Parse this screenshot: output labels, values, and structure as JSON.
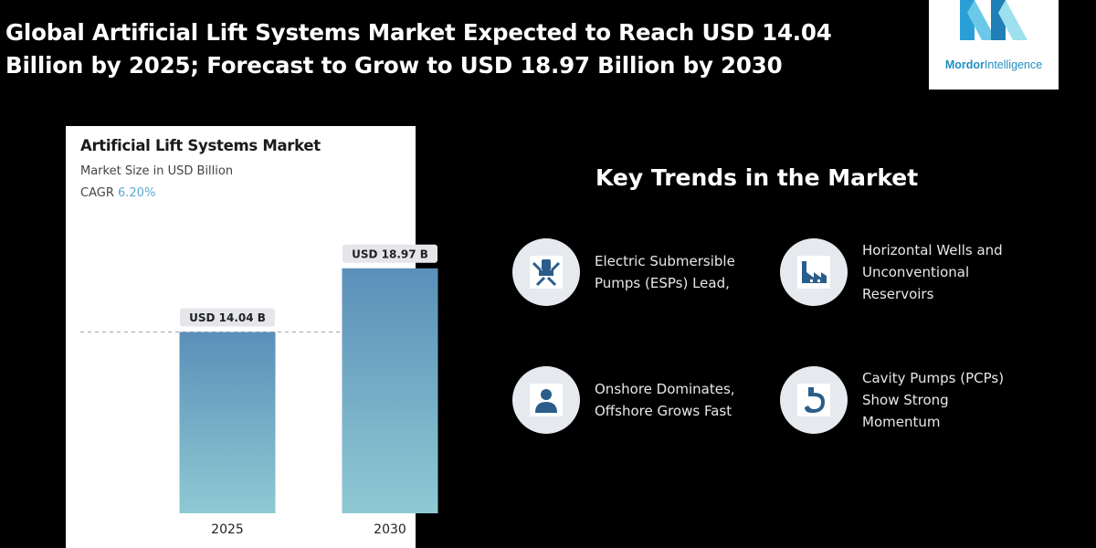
{
  "headline": "Global Artificial Lift Systems Market Expected to Reach USD 14.04 Billion by 2025; Forecast to Grow to USD 18.97 Billion by 2030",
  "logo": {
    "brand": "Mordor",
    "suffix": "Intelligence",
    "color": "#1f8fc4"
  },
  "chart_data": {
    "type": "bar",
    "title": "Artificial Lift Systems Market",
    "subtitle": "Market Size in USD Billion",
    "cagr_label": "CAGR",
    "cagr_value": "6.20%",
    "categories": [
      "2025",
      "2030"
    ],
    "values": [
      14.04,
      18.97
    ],
    "data_labels": [
      "USD 14.04 B",
      "USD 18.97 B"
    ],
    "ylim": [
      0,
      21.5
    ],
    "reference_line": 14.04,
    "bar_color_top": "#5b8fb9",
    "bar_color_bottom": "#8fc9d3",
    "grid": false
  },
  "trends": {
    "title": "Key Trends in the Market",
    "items": [
      {
        "label": "Electric Submersible\nPumps (ESPs) Lead,",
        "icon": "pump-icon"
      },
      {
        "label": "Horizontal Wells and\nUnconventional\nReservoirs",
        "icon": "factory-icon"
      },
      {
        "label": "Onshore Dominates,\nOffshore Grows Fast",
        "icon": "person-icon"
      },
      {
        "label": "Cavity Pumps (PCPs)\nShow Strong\nMomentum",
        "icon": "stomach-icon"
      }
    ]
  }
}
